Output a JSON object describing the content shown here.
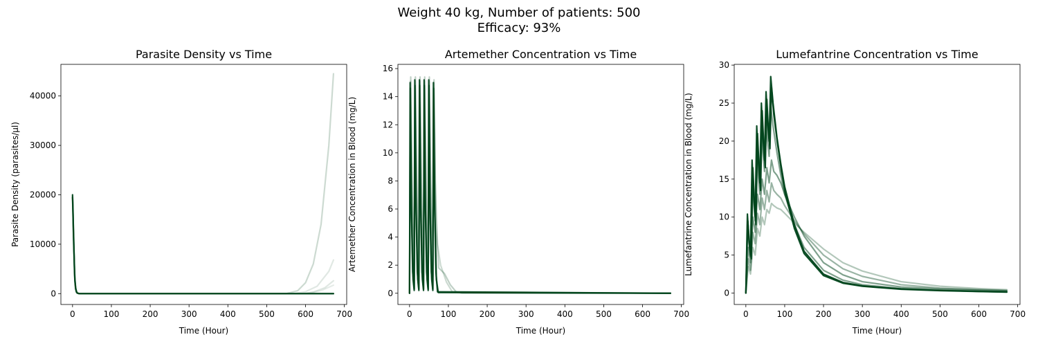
{
  "figure": {
    "suptitle_line1": "Weight 40 kg, Number of patients: 500",
    "suptitle_line2": "Efficacy: 93%"
  },
  "chart_data": [
    {
      "type": "line",
      "title": "Parasite Density vs Time",
      "xlabel": "Time (Hour)",
      "ylabel": "Parasite Density (parasites/µl)",
      "xlim": [
        -30,
        706
      ],
      "ylim": [
        -2200,
        46400
      ],
      "xticks": [
        0,
        100,
        200,
        300,
        400,
        500,
        600,
        700
      ],
      "yticks": [
        0,
        10000,
        20000,
        30000,
        40000
      ],
      "grid": false,
      "color": "#00441b",
      "series": [
        {
          "opacity": 0.2,
          "x": [
            0,
            2,
            4,
            6,
            8,
            12,
            16,
            20,
            550,
            580,
            600,
            620,
            640,
            660,
            672
          ],
          "y": [
            20000,
            14000,
            8000,
            3000,
            1000,
            200,
            20,
            0,
            0,
            600,
            2200,
            6000,
            14000,
            30000,
            44500
          ]
        },
        {
          "opacity": 0.12,
          "x": [
            0,
            2,
            4,
            6,
            8,
            12,
            16,
            20,
            570,
            600,
            630,
            660,
            672
          ],
          "y": [
            19600,
            13000,
            7000,
            2500,
            800,
            150,
            10,
            0,
            0,
            400,
            1500,
            4500,
            6800
          ]
        },
        {
          "opacity": 0.12,
          "x": [
            0,
            2,
            4,
            6,
            8,
            12,
            16,
            20,
            590,
            620,
            650,
            672
          ],
          "y": [
            19800,
            13500,
            7500,
            2800,
            900,
            180,
            15,
            0,
            0,
            300,
            1200,
            2600
          ]
        },
        {
          "opacity": 0.1,
          "x": [
            0,
            2,
            4,
            6,
            8,
            12,
            16,
            20,
            600,
            640,
            672
          ],
          "y": [
            19400,
            12500,
            6800,
            2400,
            700,
            130,
            10,
            0,
            0,
            600,
            1700
          ]
        },
        {
          "opacity": 0.9,
          "x": [
            0,
            1,
            2,
            3,
            4,
            5,
            6,
            8,
            10,
            12,
            16,
            20,
            672
          ],
          "y": [
            20000,
            17500,
            14000,
            11000,
            8000,
            5000,
            3000,
            1200,
            400,
            150,
            20,
            0,
            0
          ]
        },
        {
          "opacity": 0.9,
          "x": [
            0,
            1,
            2,
            3,
            4,
            5,
            6,
            8,
            10,
            12,
            16,
            20,
            672
          ],
          "y": [
            19500,
            16500,
            13000,
            10000,
            7500,
            4500,
            2600,
            1000,
            300,
            100,
            10,
            0,
            0
          ]
        }
      ]
    },
    {
      "type": "line",
      "title": "Artemether Concentration vs Time",
      "xlabel": "Time (Hour)",
      "ylabel": "Artemether Concentration in Blood (mg/L)",
      "xlim": [
        -30,
        706
      ],
      "ylim": [
        -0.8,
        16.3
      ],
      "xticks": [
        0,
        100,
        200,
        300,
        400,
        500,
        600,
        700
      ],
      "yticks": [
        0,
        2,
        4,
        6,
        8,
        10,
        12,
        14,
        16
      ],
      "grid": false,
      "color": "#00441b",
      "series": [
        {
          "opacity": 0.9,
          "x": [
            0,
            1.5,
            4,
            8,
            12,
            13.5,
            16,
            20,
            24,
            25.5,
            28,
            32,
            36,
            37.5,
            40,
            44,
            48,
            49.5,
            52,
            56,
            60,
            61.5,
            64,
            68,
            72,
            672
          ],
          "y": [
            0,
            15.0,
            7.0,
            1.5,
            0.3,
            15.2,
            7.0,
            1.5,
            0.3,
            15.2,
            7.0,
            1.5,
            0.3,
            15.2,
            7.0,
            1.5,
            0.3,
            15.2,
            7.0,
            1.5,
            0.3,
            15.0,
            7.0,
            1.5,
            0.1,
            0
          ]
        },
        {
          "opacity": 0.9,
          "x": [
            0,
            2,
            5,
            9,
            12,
            14,
            17,
            21,
            24,
            26,
            29,
            33,
            36,
            38,
            41,
            45,
            48,
            50,
            53,
            57,
            60,
            62,
            65,
            69,
            74,
            672
          ],
          "y": [
            0,
            14.6,
            6.0,
            1.0,
            0.2,
            14.8,
            6.0,
            1.0,
            0.2,
            14.8,
            6.0,
            1.0,
            0.2,
            14.8,
            6.0,
            1.0,
            0.2,
            14.8,
            6.0,
            1.0,
            0.2,
            14.6,
            6.0,
            1.0,
            0.05,
            0
          ]
        },
        {
          "opacity": 0.25,
          "x": [
            0,
            3,
            8,
            12,
            15,
            20,
            24,
            27,
            32,
            36,
            39,
            44,
            48,
            51,
            56,
            60,
            63,
            68,
            75,
            90,
            105,
            120,
            135,
            672
          ],
          "y": [
            0,
            15.4,
            5.0,
            1.2,
            15.4,
            5.0,
            1.2,
            15.4,
            5.0,
            1.2,
            15.4,
            5.0,
            1.2,
            15.4,
            5.0,
            1.2,
            15.2,
            5.0,
            1.8,
            1.4,
            0.6,
            0.1,
            0,
            0
          ]
        },
        {
          "opacity": 0.2,
          "x": [
            0,
            2.5,
            6,
            10,
            12,
            14.5,
            18,
            22,
            24,
            26.5,
            30,
            34,
            36,
            38.5,
            42,
            46,
            48,
            50.5,
            54,
            58,
            60,
            62.5,
            66,
            72,
            80,
            95,
            110,
            672
          ],
          "y": [
            0,
            15.1,
            8.0,
            3.0,
            2.0,
            15.1,
            8.0,
            3.0,
            2.0,
            15.1,
            8.0,
            3.0,
            2.0,
            15.1,
            8.0,
            3.0,
            2.0,
            15.1,
            8.0,
            3.0,
            2.0,
            15.0,
            8.0,
            3.5,
            2.0,
            0.8,
            0.1,
            0
          ]
        }
      ]
    },
    {
      "type": "line",
      "title": "Lumefantrine Concentration vs Time",
      "xlabel": "Time (Hour)",
      "ylabel": "Lumefantrine Concentration in Blood (mg/L)",
      "xlim": [
        -30,
        706
      ],
      "ylim": [
        -1.5,
        30.1
      ],
      "xticks": [
        0,
        100,
        200,
        300,
        400,
        500,
        600,
        700
      ],
      "yticks": [
        0,
        5,
        10,
        15,
        20,
        25,
        30
      ],
      "grid": false,
      "color": "#00441b",
      "series": [
        {
          "opacity": 0.95,
          "x": [
            0,
            4,
            8,
            12,
            16,
            20,
            24,
            28,
            32,
            36,
            40,
            44,
            48,
            52,
            56,
            60,
            64,
            70,
            80,
            90,
            100,
            125,
            150,
            200,
            250,
            300,
            400,
            500,
            600,
            672
          ],
          "y": [
            0,
            10.4,
            7.0,
            5.0,
            17.5,
            13.0,
            10.0,
            22.0,
            17.5,
            14.5,
            25.0,
            20.5,
            17.5,
            26.5,
            22.5,
            20.0,
            28.5,
            25.0,
            20.5,
            17.0,
            14.0,
            9.0,
            5.5,
            2.5,
            1.4,
            0.95,
            0.55,
            0.35,
            0.22,
            0.15
          ]
        },
        {
          "opacity": 0.95,
          "x": [
            0,
            5,
            10,
            14,
            18,
            22,
            26,
            30,
            34,
            38,
            42,
            46,
            50,
            54,
            58,
            62,
            66,
            72,
            82,
            92,
            102,
            125,
            150,
            200,
            250,
            300,
            400,
            500,
            600,
            672
          ],
          "y": [
            0,
            9.5,
            6.0,
            4.5,
            16.5,
            12.0,
            9.0,
            21.0,
            16.5,
            13.5,
            24.0,
            19.5,
            16.5,
            25.5,
            21.5,
            19.0,
            27.0,
            23.5,
            19.5,
            16.0,
            13.0,
            8.5,
            5.2,
            2.3,
            1.3,
            0.9,
            0.5,
            0.32,
            0.2,
            0.12
          ]
        },
        {
          "opacity": 0.5,
          "x": [
            0,
            6,
            12,
            18,
            24,
            30,
            36,
            42,
            48,
            54,
            60,
            66,
            72,
            80,
            90,
            100,
            125,
            150,
            200,
            250,
            300,
            400,
            500,
            600,
            672
          ],
          "y": [
            0,
            6.0,
            4.0,
            10.0,
            8.0,
            13.0,
            11.0,
            15.0,
            13.0,
            16.5,
            14.5,
            17.5,
            16.0,
            15.5,
            14.5,
            13.0,
            10.0,
            7.5,
            4.0,
            2.4,
            1.5,
            0.8,
            0.55,
            0.4,
            0.3
          ]
        },
        {
          "opacity": 0.4,
          "x": [
            0,
            6,
            12,
            18,
            24,
            30,
            36,
            42,
            48,
            54,
            60,
            66,
            72,
            80,
            90,
            100,
            125,
            150,
            200,
            250,
            300,
            400,
            500,
            600,
            672
          ],
          "y": [
            0,
            4.5,
            3.0,
            8.0,
            6.5,
            10.5,
            9.0,
            12.5,
            11.0,
            13.5,
            12.0,
            14.5,
            13.5,
            13.0,
            12.5,
            11.5,
            9.5,
            7.8,
            5.0,
            3.2,
            2.2,
            1.1,
            0.65,
            0.45,
            0.35
          ]
        },
        {
          "opacity": 0.3,
          "x": [
            0,
            6,
            12,
            18,
            24,
            30,
            36,
            42,
            48,
            54,
            60,
            66,
            72,
            80,
            90,
            100,
            125,
            150,
            200,
            250,
            300,
            400,
            500,
            600,
            672
          ],
          "y": [
            0,
            3.5,
            2.5,
            6.0,
            5.0,
            8.5,
            7.5,
            10.0,
            9.0,
            11.0,
            10.5,
            11.8,
            11.5,
            11.2,
            11.0,
            10.5,
            9.2,
            8.0,
            5.8,
            4.0,
            2.9,
            1.5,
            0.9,
            0.6,
            0.45
          ]
        },
        {
          "opacity": 0.5,
          "x": [
            0,
            4,
            8,
            12,
            16,
            20,
            24,
            28,
            32,
            36,
            40,
            44,
            48,
            52,
            56,
            60,
            64,
            70,
            80,
            90,
            100,
            125,
            150,
            200,
            250,
            300,
            400,
            500,
            600,
            672
          ],
          "y": [
            0,
            9.0,
            6.5,
            4.8,
            15.0,
            12.0,
            9.5,
            19.0,
            15.5,
            13.0,
            22.0,
            18.5,
            16.0,
            23.5,
            20.0,
            18.0,
            24.5,
            22.0,
            18.5,
            15.5,
            13.0,
            9.0,
            6.0,
            3.0,
            1.7,
            1.1,
            0.6,
            0.38,
            0.25,
            0.18
          ]
        }
      ]
    }
  ]
}
